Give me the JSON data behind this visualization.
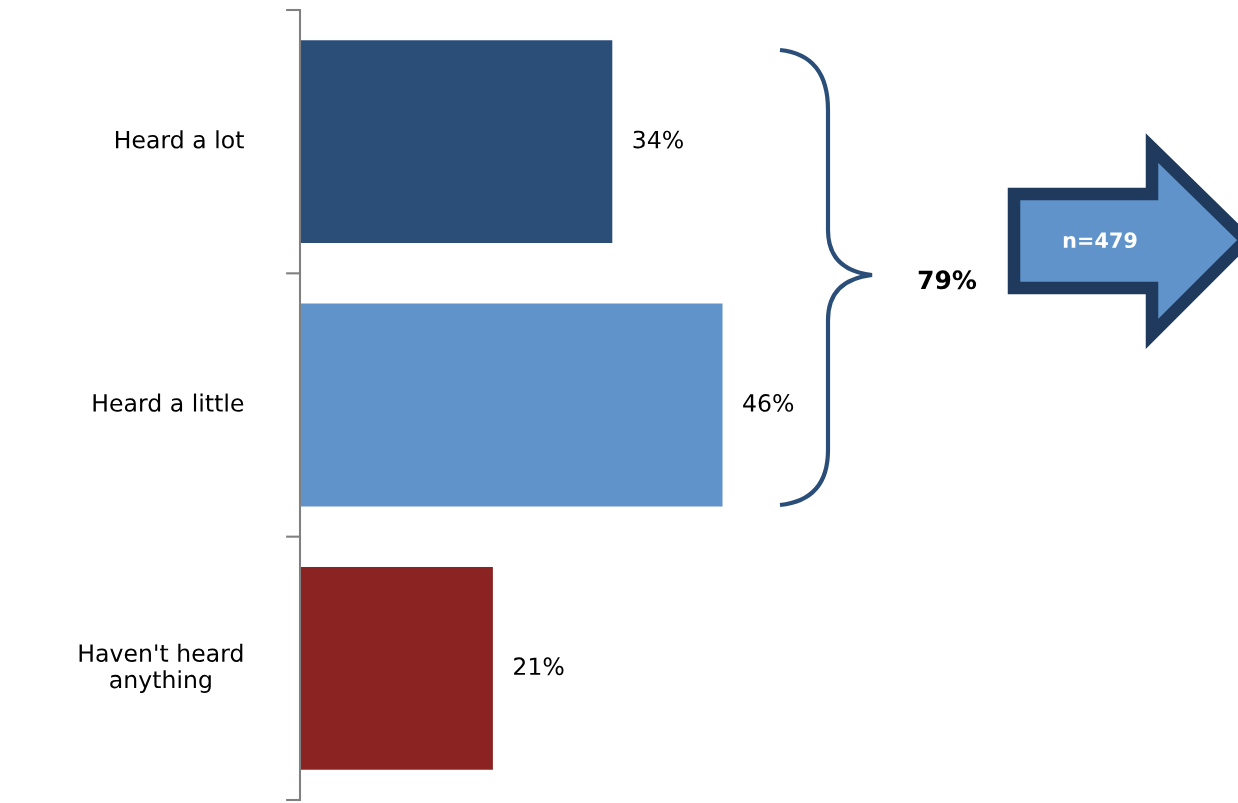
{
  "chart_data": {
    "type": "bar",
    "orientation": "horizontal",
    "categories": [
      "Heard a lot",
      "Heard a little",
      "Haven't heard anything"
    ],
    "values": [
      34,
      46,
      21
    ],
    "value_labels": [
      "34%",
      "46%",
      "21%"
    ],
    "colors": [
      "#2a4e78",
      "#6193cb",
      "#8c2323"
    ],
    "grid": false,
    "legend": false,
    "annotations": [
      "79%",
      "n=479"
    ]
  }
}
